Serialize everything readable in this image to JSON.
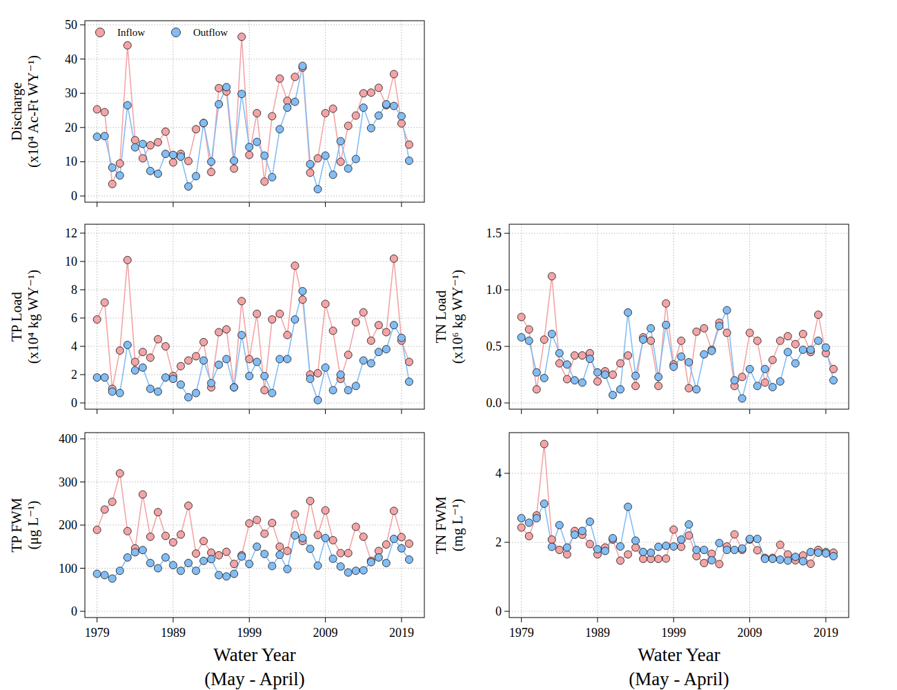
{
  "chart_data": [
    {
      "type": "line",
      "marker": "circle",
      "legend": "upper-left",
      "tick_labels": "y",
      "grid": true,
      "ylabel": "Discharge",
      "ylabel_unit": "(x10⁴ Ac-Ft WY⁻¹)",
      "x": [
        1979,
        1980,
        1981,
        1982,
        1983,
        1984,
        1985,
        1986,
        1987,
        1988,
        1989,
        1990,
        1991,
        1992,
        1993,
        1994,
        1995,
        1996,
        1997,
        1998,
        1999,
        2000,
        2001,
        2002,
        2003,
        2004,
        2005,
        2006,
        2007,
        2008,
        2009,
        2010,
        2011,
        2012,
        2013,
        2014,
        2015,
        2016,
        2017,
        2018,
        2019,
        2020
      ],
      "xlim": [
        1977.4,
        2022
      ],
      "xticks": [
        1979,
        1989,
        1999,
        2009,
        2019
      ],
      "ylim": [
        -1.8,
        51.2
      ],
      "yticks": [
        0,
        10,
        20,
        30,
        40,
        50
      ],
      "series": [
        {
          "name": "Inflow",
          "color": "#f4a4a6",
          "values": [
            25.3,
            24.5,
            3.5,
            9.5,
            44,
            16.3,
            11,
            14.8,
            15.7,
            18.8,
            9.8,
            12.3,
            10.2,
            19.5,
            21.3,
            7,
            31.5,
            30.5,
            8,
            46.5,
            12,
            24.2,
            4.2,
            23.3,
            34.3,
            27.8,
            34.8,
            37.5,
            6.8,
            11,
            24.2,
            25.5,
            10,
            20.5,
            23.5,
            30,
            30.2,
            31.6,
            26.5,
            35.6,
            21.2,
            15
          ]
        },
        {
          "name": "Outflow",
          "color": "#82bdf5",
          "values": [
            17.3,
            17.5,
            8.3,
            6,
            26.5,
            14.2,
            15.2,
            7.3,
            6.5,
            12.3,
            12,
            11.5,
            2.8,
            5.8,
            21.3,
            10,
            26.8,
            31.8,
            10.3,
            29.8,
            14.3,
            15.8,
            11.8,
            5.5,
            19.5,
            25.8,
            27.5,
            38,
            9.3,
            2,
            11.8,
            6.2,
            16,
            8,
            10.8,
            25.8,
            19.8,
            23.5,
            26.8,
            26.3,
            23.3,
            10.3
          ]
        }
      ]
    },
    {
      "type": "line",
      "marker": "circle",
      "tick_labels": "y",
      "grid": true,
      "ylabel": "TP Load",
      "ylabel_unit": "(x10⁴ kg WY⁻¹)",
      "x": [
        1979,
        1980,
        1981,
        1982,
        1983,
        1984,
        1985,
        1986,
        1987,
        1988,
        1989,
        1990,
        1991,
        1992,
        1993,
        1994,
        1995,
        1996,
        1997,
        1998,
        1999,
        2000,
        2001,
        2002,
        2003,
        2004,
        2005,
        2006,
        2007,
        2008,
        2009,
        2010,
        2011,
        2012,
        2013,
        2014,
        2015,
        2016,
        2017,
        2018,
        2019,
        2020
      ],
      "xlim": [
        1977.4,
        2022
      ],
      "xticks": [
        1979,
        1989,
        1999,
        2009,
        2019
      ],
      "ylim": [
        -0.44,
        12.63
      ],
      "yticks": [
        0,
        2,
        4,
        6,
        8,
        10,
        12
      ],
      "series": [
        {
          "color": "#f4a4a6",
          "values": [
            5.9,
            7.1,
            1.0,
            3.7,
            10.1,
            2.9,
            3.6,
            3.2,
            4.5,
            4.0,
            1.9,
            2.6,
            3.0,
            3.3,
            4.3,
            1.1,
            5.0,
            5.2,
            1.1,
            7.2,
            3.1,
            6.3,
            0.9,
            5.9,
            6.3,
            4.8,
            9.7,
            7.3,
            2.0,
            2.1,
            7.0,
            5.1,
            1.7,
            3.4,
            5.7,
            6.4,
            4.4,
            5.5,
            5.0,
            10.2,
            4.4,
            2.9
          ]
        },
        {
          "color": "#82bdf5",
          "values": [
            1.8,
            1.8,
            0.8,
            0.7,
            4.1,
            2.3,
            2.5,
            1.0,
            0.8,
            1.8,
            1.7,
            1.3,
            0.4,
            0.7,
            3.0,
            1.4,
            2.7,
            3.1,
            1.1,
            4.8,
            1.9,
            2.9,
            1.9,
            0.7,
            3.1,
            3.1,
            5.9,
            7.9,
            1.7,
            0.2,
            2.5,
            0.9,
            2.0,
            0.9,
            1.2,
            3.0,
            2.8,
            3.6,
            3.8,
            5.5,
            4.6,
            1.5
          ]
        }
      ]
    },
    {
      "type": "line",
      "marker": "circle",
      "tick_labels": "y",
      "grid": true,
      "ylabel": "TN Load",
      "ylabel_unit": "(x10⁶ kg WY⁻¹)",
      "x": [
        1979,
        1980,
        1981,
        1982,
        1983,
        1984,
        1985,
        1986,
        1987,
        1988,
        1989,
        1990,
        1991,
        1992,
        1993,
        1994,
        1995,
        1996,
        1997,
        1998,
        1999,
        2000,
        2001,
        2002,
        2003,
        2004,
        2005,
        2006,
        2007,
        2008,
        2009,
        2010,
        2011,
        2012,
        2013,
        2014,
        2015,
        2016,
        2017,
        2018,
        2019,
        2020
      ],
      "xlim": [
        1977.4,
        2022
      ],
      "xticks": [
        1979,
        1989,
        1999,
        2009,
        2019
      ],
      "ylim": [
        -0.055,
        1.58
      ],
      "yticks": [
        {
          "value": 0,
          "label": "0.0"
        },
        {
          "value": 0.5,
          "label": "0.5"
        },
        {
          "value": 1,
          "label": "1.0"
        },
        {
          "value": 1.5,
          "label": "1.5"
        }
      ],
      "series": [
        {
          "color": "#f4a4a6",
          "values": [
            0.76,
            0.65,
            0.12,
            0.56,
            1.12,
            0.35,
            0.21,
            0.42,
            0.42,
            0.44,
            0.19,
            0.28,
            0.25,
            0.35,
            0.42,
            0.15,
            0.58,
            0.55,
            0.15,
            0.88,
            0.34,
            0.55,
            0.13,
            0.63,
            0.66,
            0.47,
            0.71,
            0.62,
            0.15,
            0.23,
            0.62,
            0.55,
            0.18,
            0.38,
            0.55,
            0.59,
            0.52,
            0.61,
            0.45,
            0.78,
            0.44,
            0.3
          ]
        },
        {
          "color": "#82bdf5",
          "values": [
            0.58,
            0.55,
            0.27,
            0.22,
            0.61,
            0.44,
            0.34,
            0.2,
            0.18,
            0.39,
            0.27,
            0.25,
            0.07,
            0.12,
            0.8,
            0.24,
            0.56,
            0.66,
            0.23,
            0.69,
            0.32,
            0.41,
            0.36,
            0.12,
            0.43,
            0.46,
            0.68,
            0.82,
            0.2,
            0.04,
            0.3,
            0.15,
            0.3,
            0.14,
            0.19,
            0.45,
            0.35,
            0.47,
            0.47,
            0.55,
            0.49,
            0.2
          ]
        }
      ]
    },
    {
      "type": "line",
      "marker": "circle",
      "grid": true,
      "ylabel": "TP FWM",
      "ylabel_unit": "(μg L⁻¹)",
      "xlabel": "Water Year",
      "xlabel_sub": "(May - April)",
      "x": [
        1979,
        1980,
        1981,
        1982,
        1983,
        1984,
        1985,
        1986,
        1987,
        1988,
        1989,
        1990,
        1991,
        1992,
        1993,
        1994,
        1995,
        1996,
        1997,
        1998,
        1999,
        2000,
        2001,
        2002,
        2003,
        2004,
        2005,
        2006,
        2007,
        2008,
        2009,
        2010,
        2011,
        2012,
        2013,
        2014,
        2015,
        2016,
        2017,
        2018,
        2019,
        2020
      ],
      "xlim": [
        1977.4,
        2022
      ],
      "xticks": [
        1979,
        1989,
        1999,
        2009,
        2019
      ],
      "ylim": [
        -14.4,
        414.4
      ],
      "yticks": [
        0,
        100,
        200,
        300,
        400
      ],
      "series": [
        {
          "color": "#f4a4a6",
          "values": [
            189,
            236,
            254,
            320,
            186,
            146,
            271,
            173,
            230,
            175,
            160,
            178,
            245,
            134,
            163,
            136,
            130,
            138,
            110,
            130,
            204,
            212,
            180,
            205,
            150,
            140,
            225,
            163,
            256,
            177,
            234,
            165,
            135,
            135,
            196,
            173,
            117,
            140,
            155,
            233,
            172,
            157
          ]
        },
        {
          "color": "#82bdf5",
          "values": [
            87,
            84,
            76,
            94,
            125,
            137,
            142,
            112,
            100,
            125,
            107,
            94,
            112,
            94,
            117,
            121,
            84,
            81,
            87,
            127,
            110,
            150,
            133,
            105,
            131,
            98,
            176,
            170,
            145,
            106,
            170,
            122,
            104,
            90,
            94,
            95,
            114,
            125,
            112,
            168,
            146,
            120
          ]
        }
      ]
    },
    {
      "type": "line",
      "marker": "circle",
      "grid": true,
      "ylabel": "TN FWM",
      "ylabel_unit": "(mg L⁻¹)",
      "xlabel": "Water Year",
      "xlabel_sub": "(May - April)",
      "x": [
        1979,
        1980,
        1981,
        1982,
        1983,
        1984,
        1985,
        1986,
        1987,
        1988,
        1989,
        1990,
        1991,
        1992,
        1993,
        1994,
        1995,
        1996,
        1997,
        1998,
        1999,
        2000,
        2001,
        2002,
        2003,
        2004,
        2005,
        2006,
        2007,
        2008,
        2009,
        2010,
        2011,
        2012,
        2013,
        2014,
        2015,
        2016,
        2017,
        2018,
        2019,
        2020
      ],
      "xlim": [
        1977.4,
        2022
      ],
      "xticks": [
        1979,
        1989,
        1999,
        2009,
        2019
      ],
      "ylim": [
        -0.18,
        5.18
      ],
      "yticks": [
        0,
        2,
        4
      ],
      "series": [
        {
          "color": "#f4a4a6",
          "values": [
            2.43,
            2.18,
            2.78,
            4.85,
            2.08,
            1.78,
            1.65,
            2.33,
            2.22,
            1.95,
            1.65,
            1.85,
            2.08,
            1.47,
            1.65,
            1.85,
            1.52,
            1.52,
            1.52,
            1.53,
            2.37,
            1.87,
            2.2,
            1.6,
            1.4,
            1.67,
            1.37,
            1.88,
            2.23,
            1.78,
            2.08,
            1.77,
            1.55,
            1.55,
            1.93,
            1.65,
            1.48,
            1.62,
            1.38,
            1.78,
            1.72,
            1.7
          ]
        },
        {
          "color": "#82bdf5",
          "values": [
            2.7,
            2.57,
            2.7,
            3.12,
            1.87,
            2.5,
            1.85,
            2.22,
            2.33,
            2.6,
            1.8,
            1.75,
            2.12,
            1.88,
            3.03,
            2.05,
            1.72,
            1.7,
            1.87,
            1.9,
            1.88,
            2.08,
            2.52,
            1.78,
            1.78,
            1.48,
            1.98,
            1.78,
            1.78,
            1.82,
            2.1,
            2.1,
            1.52,
            1.52,
            1.5,
            1.47,
            1.58,
            1.45,
            1.72,
            1.7,
            1.68,
            1.6
          ]
        }
      ]
    }
  ]
}
